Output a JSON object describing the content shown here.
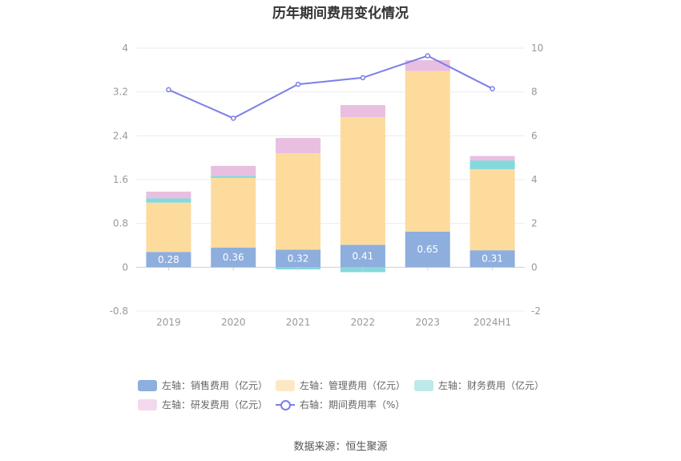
{
  "chart_data": {
    "type": "bar",
    "title": "历年期间费用变化情况",
    "categories": [
      "2019",
      "2020",
      "2021",
      "2022",
      "2023",
      "2024H1"
    ],
    "left_axis": {
      "ylim": [
        -0.8,
        4
      ],
      "ticks": [
        "4",
        "3.2",
        "2.4",
        "1.6",
        "0.8",
        "0",
        "-0.8"
      ]
    },
    "right_axis": {
      "ylim": [
        -2,
        10
      ],
      "ticks": [
        "10",
        "8",
        "6",
        "4",
        "2",
        "0",
        "-2"
      ]
    },
    "series": [
      {
        "name": "左轴：销售费用（亿元）",
        "type": "bar",
        "color": "#8eaedd",
        "values": [
          0.28,
          0.36,
          0.32,
          0.41,
          0.65,
          0.31
        ],
        "labels": [
          "0.28",
          "0.36",
          "0.32",
          "0.41",
          "0.65",
          "0.31"
        ]
      },
      {
        "name": "左轴：管理费用（亿元）",
        "type": "bar",
        "color": "#fddb9d",
        "values": [
          0.9,
          1.27,
          1.76,
          2.33,
          2.93,
          1.48
        ]
      },
      {
        "name": "左轴：财务费用（亿元）",
        "type": "bar",
        "color": "#87d8dc",
        "values": [
          0.08,
          0.04,
          -0.04,
          -0.09,
          0.0,
          0.16
        ]
      },
      {
        "name": "左轴：研发费用（亿元）",
        "type": "bar",
        "color": "#e8bfe0",
        "values": [
          0.12,
          0.18,
          0.28,
          0.22,
          0.2,
          0.08
        ]
      },
      {
        "name": "右轴：期间费用率（%）",
        "type": "line",
        "color": "#7b7fe6",
        "values": [
          8.1,
          6.8,
          8.35,
          8.65,
          9.65,
          8.15
        ]
      }
    ],
    "grid": true,
    "legend_position": "bottom"
  },
  "source": "数据来源：恒生聚源"
}
